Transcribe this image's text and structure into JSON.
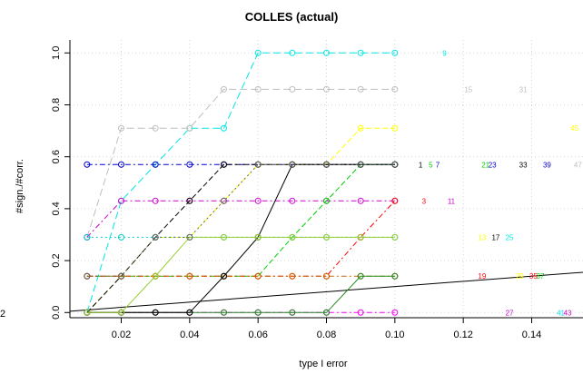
{
  "chart_data": {
    "type": "line",
    "title": "COLLES (actual)",
    "xlabel": "type I error",
    "ylabel": "#sign./#corr.",
    "xlim": [
      0.005,
      0.155
    ],
    "ylim": [
      -0.02,
      1.05
    ],
    "xticks": [
      "0.02",
      "0.04",
      "0.06",
      "0.08",
      "0.10",
      "0.12",
      "0.14"
    ],
    "xtick_values": [
      0.02,
      0.04,
      0.06,
      0.08,
      0.1,
      0.12,
      0.14
    ],
    "yticks": [
      "0.0",
      "0.2",
      "0.4",
      "0.6",
      "0.8",
      "1.0"
    ],
    "ytick_values": [
      0.0,
      0.2,
      0.4,
      0.6,
      0.8,
      1.0
    ],
    "edge_label": "2",
    "grid": true,
    "x": [
      0.01,
      0.02,
      0.03,
      0.04,
      0.05,
      0.06,
      0.07,
      0.08,
      0.09,
      0.1
    ],
    "series": [
      {
        "color": "#00e5e5",
        "dash": "8,4",
        "values": [
          0.0,
          0.43,
          0.57,
          0.71,
          0.71,
          1.0,
          1.0,
          1.0,
          1.0,
          1.0
        ]
      },
      {
        "color": "#bebebe",
        "dash": "8,4",
        "values": [
          0.29,
          0.71,
          0.71,
          0.71,
          0.86,
          0.86,
          0.86,
          0.86,
          0.86,
          0.86
        ]
      },
      {
        "color": "#0000cd",
        "dash": "6,3,2,3",
        "values": [
          0.57,
          0.57,
          0.57,
          0.57,
          0.57,
          0.57,
          0.57,
          0.57,
          0.57,
          0.57
        ]
      },
      {
        "color": "#ffff00",
        "dash": "6,3",
        "values": [
          0.0,
          0.14,
          0.29,
          0.29,
          0.43,
          0.57,
          0.57,
          0.57,
          0.71,
          0.71
        ]
      },
      {
        "color": "#cd00cd",
        "dash": "6,3,2,3",
        "values": [
          0.29,
          0.43,
          0.43,
          0.43,
          0.43,
          0.43,
          0.43,
          0.43,
          0.43,
          0.43
        ]
      },
      {
        "color": "#000000",
        "dash": "6,3",
        "values": [
          0.0,
          0.14,
          0.29,
          0.43,
          0.57,
          0.57,
          0.57,
          0.57,
          0.57,
          0.57
        ]
      },
      {
        "color": "#00cd00",
        "dash": "6,3",
        "values": [
          0.14,
          0.14,
          0.14,
          0.14,
          0.14,
          0.14,
          0.29,
          0.43,
          0.57,
          0.57
        ]
      },
      {
        "color": "#00cdcd",
        "dash": "2,3",
        "values": [
          0.29,
          0.29,
          0.29,
          0.29,
          0.29,
          0.29,
          0.29,
          0.29,
          0.29,
          0.29
        ]
      },
      {
        "color": "#ff0000",
        "dash": "6,3,2,3",
        "values": [
          0.14,
          0.14,
          0.14,
          0.14,
          0.14,
          0.14,
          0.14,
          0.14,
          0.29,
          0.43
        ]
      },
      {
        "color": "#cd6600",
        "dash": "6,3,2,3",
        "values": [
          0.14,
          0.14,
          0.14,
          0.14,
          0.14,
          0.14,
          0.14,
          0.14,
          0.14,
          0.14
        ]
      },
      {
        "color": "#ff00ff",
        "dash": "6,3,2,3",
        "values": [
          0.0,
          0.0,
          0.0,
          0.0,
          0.0,
          0.0,
          0.0,
          0.0,
          0.0,
          0.0
        ]
      },
      {
        "color": "#228b22",
        "dash": "",
        "values": [
          0.0,
          0.0,
          0.0,
          0.0,
          0.0,
          0.0,
          0.0,
          0.0,
          0.14,
          0.14
        ]
      },
      {
        "color": "#000000",
        "dash": "",
        "values": [
          0.0,
          0.0,
          0.0,
          0.0,
          0.14,
          0.29,
          0.57,
          0.57,
          0.57,
          0.57
        ]
      },
      {
        "color": "#9acd32",
        "dash": "",
        "values": [
          0.0,
          0.0,
          0.14,
          0.29,
          0.29,
          0.29,
          0.29,
          0.29,
          0.29,
          0.29
        ]
      },
      {
        "color": "#666666",
        "dash": "2,3",
        "values": [
          0.14,
          0.14,
          0.29,
          0.29,
          0.43,
          0.57,
          0.57,
          0.57,
          0.57,
          0.57
        ]
      }
    ],
    "reference_line": {
      "color": "#000000",
      "x": [
        0.005,
        0.155
      ],
      "y": [
        0.005,
        0.155
      ]
    },
    "annotations": [
      {
        "text": "9",
        "x": 0.1145,
        "y": 1.0,
        "color": "#00e5e5"
      },
      {
        "text": "15",
        "x": 0.1215,
        "y": 0.86,
        "color": "#bebebe"
      },
      {
        "text": "31",
        "x": 0.1375,
        "y": 0.86,
        "color": "#bebebe"
      },
      {
        "text": "45",
        "x": 0.1525,
        "y": 0.71,
        "color": "#ffff00"
      },
      {
        "text": "1",
        "x": 0.1075,
        "y": 0.57,
        "color": "#000000"
      },
      {
        "text": "5",
        "x": 0.1105,
        "y": 0.57,
        "color": "#00cd00"
      },
      {
        "text": "7",
        "x": 0.1125,
        "y": 0.57,
        "color": "#0000cd"
      },
      {
        "text": "21",
        "x": 0.1265,
        "y": 0.57,
        "color": "#00cd00"
      },
      {
        "text": "23",
        "x": 0.1285,
        "y": 0.57,
        "color": "#0000cd"
      },
      {
        "text": "33",
        "x": 0.1375,
        "y": 0.57,
        "color": "#000000"
      },
      {
        "text": "39",
        "x": 0.1445,
        "y": 0.57,
        "color": "#0000cd"
      },
      {
        "text": "47",
        "x": 0.1535,
        "y": 0.57,
        "color": "#bebebe"
      },
      {
        "text": "3",
        "x": 0.1085,
        "y": 0.43,
        "color": "#ff0000"
      },
      {
        "text": "11",
        "x": 0.1165,
        "y": 0.43,
        "color": "#cd00cd"
      },
      {
        "text": "13",
        "x": 0.1255,
        "y": 0.29,
        "color": "#ffff00"
      },
      {
        "text": "17",
        "x": 0.1295,
        "y": 0.29,
        "color": "#000000"
      },
      {
        "text": "25",
        "x": 0.1335,
        "y": 0.29,
        "color": "#00e5e5"
      },
      {
        "text": "19",
        "x": 0.1255,
        "y": 0.14,
        "color": "#ff0000"
      },
      {
        "text": "29",
        "x": 0.1365,
        "y": 0.14,
        "color": "#ffff00"
      },
      {
        "text": "35",
        "x": 0.1405,
        "y": 0.14,
        "color": "#ff0000"
      },
      {
        "text": "37",
        "x": 0.1425,
        "y": 0.14,
        "color": "#00cd00"
      },
      {
        "text": "27",
        "x": 0.1335,
        "y": 0.0,
        "color": "#cd00cd"
      },
      {
        "text": "41",
        "x": 0.1485,
        "y": 0.0,
        "color": "#00e5e5"
      },
      {
        "text": "43",
        "x": 0.1505,
        "y": 0.0,
        "color": "#cd00cd"
      }
    ]
  }
}
